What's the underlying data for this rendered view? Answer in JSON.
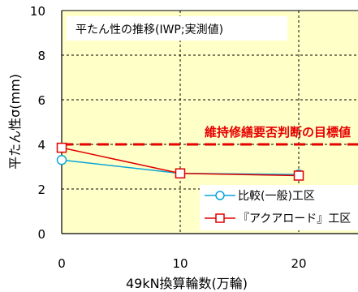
{
  "chart_data": {
    "type": "line",
    "title": "平たん性の推移(IWP;実測値)",
    "xlabel": "49kN換算輪数(万輪)",
    "ylabel": "平たん性σ(mm)",
    "xlim": [
      0,
      25
    ],
    "ylim": [
      0,
      10
    ],
    "xticks": [
      "0",
      "10",
      "20"
    ],
    "yticks": [
      "0",
      "2",
      "4",
      "6",
      "8",
      "10"
    ],
    "grid": true,
    "legend": "bottom-right",
    "series": [
      {
        "name": "比較(一般)工区",
        "color": "#0aa5d8",
        "marker": "circle",
        "x": [
          0,
          10,
          20
        ],
        "y": [
          3.3,
          2.7,
          2.65
        ]
      },
      {
        "name": "『アクアロード』工区",
        "color": "#e00000",
        "marker": "square",
        "x": [
          0,
          10,
          20
        ],
        "y": [
          3.85,
          2.7,
          2.6
        ]
      }
    ],
    "reference_line": {
      "label": "維持修繕要否判断の目標値",
      "y": 4.0,
      "color": "#e60000"
    },
    "plot_background": "#ffffc8"
  }
}
